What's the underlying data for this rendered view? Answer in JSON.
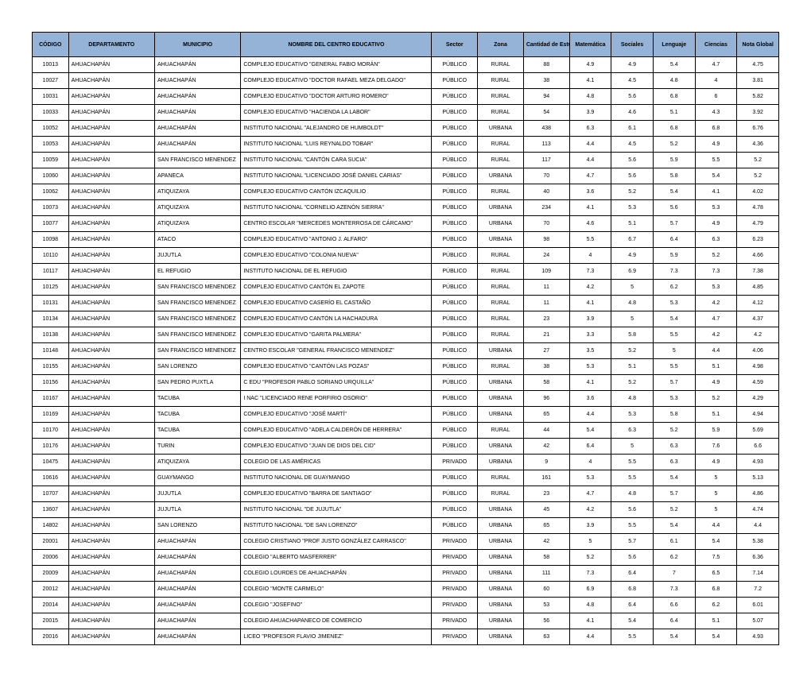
{
  "table": {
    "header_bg": "#95b3d7",
    "border_color": "#000000",
    "columns": [
      {
        "key": "codigo",
        "label": "CÓDIGO",
        "class": "c-codigo"
      },
      {
        "key": "depto",
        "label": "DEPARTAMENTO",
        "class": "c-depto"
      },
      {
        "key": "muni",
        "label": "MUNICIPIO",
        "class": "c-muni"
      },
      {
        "key": "nombre",
        "label": "NOMBRE DEL CENTRO EDUCATIVO",
        "class": "c-nombre"
      },
      {
        "key": "sector",
        "label": "Sector",
        "class": "c-sector"
      },
      {
        "key": "zona",
        "label": "Zona",
        "class": "c-zona"
      },
      {
        "key": "cant",
        "label": "Cantidad de Estudiantes",
        "class": "c-cant"
      },
      {
        "key": "mat",
        "label": "Matemática",
        "class": "c-mat"
      },
      {
        "key": "soc",
        "label": "Sociales",
        "class": "c-soc"
      },
      {
        "key": "len",
        "label": "Lenguaje",
        "class": "c-len"
      },
      {
        "key": "cie",
        "label": "Ciencias",
        "class": "c-cie"
      },
      {
        "key": "glo",
        "label": "Nota Global",
        "class": "c-glo"
      }
    ],
    "rows": [
      {
        "codigo": "10013",
        "depto": "AHUACHAPÁN",
        "muni": "AHUACHAPÁN",
        "nombre": "COMPLEJO EDUCATIVO \"GENERAL FABIO MORÁN\"",
        "sector": "PÚBLICO",
        "zona": "RURAL",
        "cant": "88",
        "mat": "4.9",
        "soc": "4.9",
        "len": "5.4",
        "cie": "4.7",
        "glo": "4.75"
      },
      {
        "codigo": "10027",
        "depto": "AHUACHAPÁN",
        "muni": "AHUACHAPÁN",
        "nombre": "COMPLEJO EDUCATIVO \"DOCTOR RAFAEL MEZA DELGADO\"",
        "sector": "PÚBLICO",
        "zona": "RURAL",
        "cant": "38",
        "mat": "4.1",
        "soc": "4.5",
        "len": "4.8",
        "cie": "4",
        "glo": "3.81"
      },
      {
        "codigo": "10031",
        "depto": "AHUACHAPÁN",
        "muni": "AHUACHAPÁN",
        "nombre": "COMPLEJO EDUCATIVO \"DOCTOR ARTURO ROMERO\"",
        "sector": "PÚBLICO",
        "zona": "RURAL",
        "cant": "94",
        "mat": "4.8",
        "soc": "5.6",
        "len": "6.8",
        "cie": "6",
        "glo": "5.82"
      },
      {
        "codigo": "10033",
        "depto": "AHUACHAPÁN",
        "muni": "AHUACHAPÁN",
        "nombre": "COMPLEJO EDUCATIVO \"HACIENDA LA LABOR\"",
        "sector": "PÚBLICO",
        "zona": "RURAL",
        "cant": "54",
        "mat": "3.9",
        "soc": "4.6",
        "len": "5.1",
        "cie": "4.3",
        "glo": "3.92"
      },
      {
        "codigo": "10052",
        "depto": "AHUACHAPÁN",
        "muni": "AHUACHAPÁN",
        "nombre": "INSTITUTO NACIONAL \"ALEJANDRO DE HUMBOLDT\"",
        "sector": "PÚBLICO",
        "zona": "URBANA",
        "cant": "438",
        "mat": "6.3",
        "soc": "6.1",
        "len": "6.8",
        "cie": "6.8",
        "glo": "6.76"
      },
      {
        "codigo": "10053",
        "depto": "AHUACHAPÁN",
        "muni": "AHUACHAPÁN",
        "nombre": "INSTITUTO NACIONAL \"LUIS REYNALDO TOBAR\"",
        "sector": "PÚBLICO",
        "zona": "RURAL",
        "cant": "113",
        "mat": "4.4",
        "soc": "4.5",
        "len": "5.2",
        "cie": "4.9",
        "glo": "4.36"
      },
      {
        "codigo": "10059",
        "depto": "AHUACHAPÁN",
        "muni": "SAN FRANCISCO MENENDEZ",
        "nombre": "INSTITUTO NACIONAL \"CANTÓN CARA SUCIA\"",
        "sector": "PÚBLICO",
        "zona": "RURAL",
        "cant": "117",
        "mat": "4.4",
        "soc": "5.6",
        "len": "5.9",
        "cie": "5.5",
        "glo": "5.2"
      },
      {
        "codigo": "10060",
        "depto": "AHUACHAPÁN",
        "muni": "APANECA",
        "nombre": "INSTITUTO NACIONAL \"LICENCIADO JOSÉ DANIEL CARIAS\"",
        "sector": "PÚBLICO",
        "zona": "URBANA",
        "cant": "70",
        "mat": "4.7",
        "soc": "5.6",
        "len": "5.8",
        "cie": "5.4",
        "glo": "5.2"
      },
      {
        "codigo": "10062",
        "depto": "AHUACHAPÁN",
        "muni": "ATIQUIZAYA",
        "nombre": "COMPLEJO EDUCATIVO CANTÓN  IZCAQUILIO",
        "sector": "PÚBLICO",
        "zona": "RURAL",
        "cant": "40",
        "mat": "3.6",
        "soc": "5.2",
        "len": "5.4",
        "cie": "4.1",
        "glo": "4.02"
      },
      {
        "codigo": "10073",
        "depto": "AHUACHAPÁN",
        "muni": "ATIQUIZAYA",
        "nombre": "INSTITUTO NACIONAL \"CORNELIO AZENÓN SIERRA\"",
        "sector": "PÚBLICO",
        "zona": "URBANA",
        "cant": "234",
        "mat": "4.1",
        "soc": "5.3",
        "len": "5.6",
        "cie": "5.3",
        "glo": "4.78"
      },
      {
        "codigo": "10077",
        "depto": "AHUACHAPÁN",
        "muni": "ATIQUIZAYA",
        "nombre": "CENTRO ESCOLAR \"MERCEDES MONTERROSA DE CÁRCAMO\"",
        "sector": "PÚBLICO",
        "zona": "URBANA",
        "cant": "70",
        "mat": "4.6",
        "soc": "5.1",
        "len": "5.7",
        "cie": "4.9",
        "glo": "4.79"
      },
      {
        "codigo": "10098",
        "depto": "AHUACHAPÁN",
        "muni": "ATACO",
        "nombre": "COMPLEJO EDUCATIVO \"ANTONIO J. ALFARO\"",
        "sector": "PÚBLICO",
        "zona": "URBANA",
        "cant": "98",
        "mat": "5.5",
        "soc": "6.7",
        "len": "6.4",
        "cie": "6.3",
        "glo": "6.23"
      },
      {
        "codigo": "10110",
        "depto": "AHUACHAPÁN",
        "muni": "JUJUTLA",
        "nombre": "COMPLEJO EDUCATIVO \"COLONIA NUEVA\"",
        "sector": "PÚBLICO",
        "zona": "RURAL",
        "cant": "24",
        "mat": "4",
        "soc": "4.9",
        "len": "5.9",
        "cie": "5.2",
        "glo": "4.66"
      },
      {
        "codigo": "10117",
        "depto": "AHUACHAPÁN",
        "muni": "EL REFUGIO",
        "nombre": "INSTITUTO NACIONAL DE EL REFUGIO",
        "sector": "PÚBLICO",
        "zona": "RURAL",
        "cant": "109",
        "mat": "7.3",
        "soc": "6.9",
        "len": "7.3",
        "cie": "7.3",
        "glo": "7.38"
      },
      {
        "codigo": "10125",
        "depto": "AHUACHAPÁN",
        "muni": "SAN FRANCISCO MENENDEZ",
        "nombre": "COMPLEJO EDUCATIVO CANTÓN EL ZAPOTE",
        "sector": "PÚBLICO",
        "zona": "RURAL",
        "cant": "11",
        "mat": "4.2",
        "soc": "5",
        "len": "6.2",
        "cie": "5.3",
        "glo": "4.85"
      },
      {
        "codigo": "10131",
        "depto": "AHUACHAPÁN",
        "muni": "SAN FRANCISCO MENENDEZ",
        "nombre": "COMPLEJO EDUCATIVO CASERÍO EL CASTAÑO",
        "sector": "PÚBLICO",
        "zona": "RURAL",
        "cant": "11",
        "mat": "4.1",
        "soc": "4.8",
        "len": "5.3",
        "cie": "4.2",
        "glo": "4.12"
      },
      {
        "codigo": "10134",
        "depto": "AHUACHAPÁN",
        "muni": "SAN FRANCISCO MENENDEZ",
        "nombre": "COMPLEJO EDUCATIVO CANTÓN LA HACHADURA",
        "sector": "PÚBLICO",
        "zona": "RURAL",
        "cant": "23",
        "mat": "3.9",
        "soc": "5",
        "len": "5.4",
        "cie": "4.7",
        "glo": "4.37"
      },
      {
        "codigo": "10138",
        "depto": "AHUACHAPÁN",
        "muni": "SAN FRANCISCO MENENDEZ",
        "nombre": "COMPLEJO EDUCATIVO \"GARITA PALMERA\"",
        "sector": "PÚBLICO",
        "zona": "RURAL",
        "cant": "21",
        "mat": "3.3",
        "soc": "5.8",
        "len": "5.5",
        "cie": "4.2",
        "glo": "4.2"
      },
      {
        "codigo": "10148",
        "depto": "AHUACHAPÁN",
        "muni": "SAN FRANCISCO MENENDEZ",
        "nombre": "CENTRO ESCOLAR \"GENERAL FRANCISCO MENENDEZ\"",
        "sector": "PÚBLICO",
        "zona": "URBANA",
        "cant": "27",
        "mat": "3.5",
        "soc": "5.2",
        "len": "5",
        "cie": "4.4",
        "glo": "4.06"
      },
      {
        "codigo": "10155",
        "depto": "AHUACHAPÁN",
        "muni": "SAN LORENZO",
        "nombre": "COMPLEJO EDUCATIVO \"CANTÓN LAS POZAS\"",
        "sector": "PÚBLICO",
        "zona": "RURAL",
        "cant": "38",
        "mat": "5.3",
        "soc": "5.1",
        "len": "5.5",
        "cie": "5.1",
        "glo": "4.98"
      },
      {
        "codigo": "10156",
        "depto": "AHUACHAPÁN",
        "muni": "SAN PEDRO PUXTLA",
        "nombre": "C EDU \"PROFESOR PABLO SORIANO URQUILLA\"",
        "sector": "PÚBLICO",
        "zona": "URBANA",
        "cant": "58",
        "mat": "4.1",
        "soc": "5.2",
        "len": "5.7",
        "cie": "4.9",
        "glo": "4.59"
      },
      {
        "codigo": "10167",
        "depto": "AHUACHAPÁN",
        "muni": "TACUBA",
        "nombre": "I NAC \"LICENCIADO RENE PORFIRIO OSORIO\"",
        "sector": "PÚBLICO",
        "zona": "URBANA",
        "cant": "96",
        "mat": "3.6",
        "soc": "4.8",
        "len": "5.3",
        "cie": "5.2",
        "glo": "4.29"
      },
      {
        "codigo": "10169",
        "depto": "AHUACHAPÁN",
        "muni": "TACUBA",
        "nombre": "COMPLEJO EDUCATIVO \"JOSÉ MARTÍ\"",
        "sector": "PÚBLICO",
        "zona": "URBANA",
        "cant": "65",
        "mat": "4.4",
        "soc": "5.3",
        "len": "5.8",
        "cie": "5.1",
        "glo": "4.94"
      },
      {
        "codigo": "10170",
        "depto": "AHUACHAPÁN",
        "muni": "TACUBA",
        "nombre": "COMPLEJO EDUCATIVO \"ADELA CALDERÓN DE HERRERA\"",
        "sector": "PÚBLICO",
        "zona": "RURAL",
        "cant": "44",
        "mat": "5.4",
        "soc": "6.3",
        "len": "5.2",
        "cie": "5.9",
        "glo": "5.69"
      },
      {
        "codigo": "10176",
        "depto": "AHUACHAPÁN",
        "muni": "TURIN",
        "nombre": "COMPLEJO EDUCATIVO \"JUAN DE DIOS DEL CID\"",
        "sector": "PÚBLICO",
        "zona": "URBANA",
        "cant": "42",
        "mat": "6.4",
        "soc": "5",
        "len": "6.3",
        "cie": "7.6",
        "glo": "6.6"
      },
      {
        "codigo": "10475",
        "depto": "AHUACHAPÁN",
        "muni": "ATIQUIZAYA",
        "nombre": "COLEGIO DE LAS AMÉRICAS",
        "sector": "PRIVADO",
        "zona": "URBANA",
        "cant": "9",
        "mat": "4",
        "soc": "5.5",
        "len": "6.3",
        "cie": "4.9",
        "glo": "4.93"
      },
      {
        "codigo": "10616",
        "depto": "AHUACHAPÁN",
        "muni": "GUAYMANGO",
        "nombre": "INSTITUTO NACIONAL DE GUAYMANGO",
        "sector": "PÚBLICO",
        "zona": "RURAL",
        "cant": "161",
        "mat": "5.3",
        "soc": "5.5",
        "len": "5.4",
        "cie": "5",
        "glo": "5.13"
      },
      {
        "codigo": "10707",
        "depto": "AHUACHAPÁN",
        "muni": "JUJUTLA",
        "nombre": "COMPLEJO EDUCATIVO \"BARRA DE SANTIAGO\"",
        "sector": "PÚBLICO",
        "zona": "RURAL",
        "cant": "23",
        "mat": "4.7",
        "soc": "4.8",
        "len": "5.7",
        "cie": "5",
        "glo": "4.86"
      },
      {
        "codigo": "13607",
        "depto": "AHUACHAPÁN",
        "muni": "JUJUTLA",
        "nombre": "INSTITUTO NACIONAL \"DE JUJUTLA\"",
        "sector": "PÚBLICO",
        "zona": "URBANA",
        "cant": "45",
        "mat": "4.2",
        "soc": "5.6",
        "len": "5.2",
        "cie": "5",
        "glo": "4.74"
      },
      {
        "codigo": "14802",
        "depto": "AHUACHAPÁN",
        "muni": "SAN LORENZO",
        "nombre": "INSTITUTO NACIONAL \"DE SAN LORENZO\"",
        "sector": "PÚBLICO",
        "zona": "URBANA",
        "cant": "65",
        "mat": "3.9",
        "soc": "5.5",
        "len": "5.4",
        "cie": "4.4",
        "glo": "4.4"
      },
      {
        "codigo": "20001",
        "depto": "AHUACHAPÁN",
        "muni": "AHUACHAPÁN",
        "nombre": "COLEGIO CRISTIANO \"PROF JUSTO GONZÁLEZ CARRASCO\"",
        "sector": "PRIVADO",
        "zona": "URBANA",
        "cant": "42",
        "mat": "5",
        "soc": "5.7",
        "len": "6.1",
        "cie": "5.4",
        "glo": "5.38"
      },
      {
        "codigo": "20006",
        "depto": "AHUACHAPÁN",
        "muni": "AHUACHAPÁN",
        "nombre": "COLEGIO \"ALBERTO MASFERRER\"",
        "sector": "PRIVADO",
        "zona": "URBANA",
        "cant": "58",
        "mat": "5.2",
        "soc": "5.6",
        "len": "6.2",
        "cie": "7.5",
        "glo": "6.36"
      },
      {
        "codigo": "20009",
        "depto": "AHUACHAPÁN",
        "muni": "AHUACHAPÁN",
        "nombre": "COLEGIO LOURDES DE AHUACHAPÁN",
        "sector": "PRIVADO",
        "zona": "URBANA",
        "cant": "111",
        "mat": "7.3",
        "soc": "6.4",
        "len": "7",
        "cie": "6.5",
        "glo": "7.14"
      },
      {
        "codigo": "20012",
        "depto": "AHUACHAPÁN",
        "muni": "AHUACHAPÁN",
        "nombre": "COLEGIO \"MONTE CARMELO\"",
        "sector": "PRIVADO",
        "zona": "URBANA",
        "cant": "60",
        "mat": "6.9",
        "soc": "6.8",
        "len": "7.3",
        "cie": "6.8",
        "glo": "7.2"
      },
      {
        "codigo": "20014",
        "depto": "AHUACHAPÁN",
        "muni": "AHUACHAPÁN",
        "nombre": "COLEGIO \"JOSEFINO\"",
        "sector": "PRIVADO",
        "zona": "URBANA",
        "cant": "53",
        "mat": "4.8",
        "soc": "6.4",
        "len": "6.6",
        "cie": "6.2",
        "glo": "6.01"
      },
      {
        "codigo": "20015",
        "depto": "AHUACHAPÁN",
        "muni": "AHUACHAPÁN",
        "nombre": "COLEGIO AHUACHAPANECO DE COMERCIO",
        "sector": "PRIVADO",
        "zona": "URBANA",
        "cant": "56",
        "mat": "4.1",
        "soc": "5.4",
        "len": "6.4",
        "cie": "5.1",
        "glo": "5.07"
      },
      {
        "codigo": "20016",
        "depto": "AHUACHAPÁN",
        "muni": "AHUACHAPÁN",
        "nombre": "LICEO \"PROFESOR FLAVIO JIMENEZ\"",
        "sector": "PRIVADO",
        "zona": "URBANA",
        "cant": "63",
        "mat": "4.4",
        "soc": "5.5",
        "len": "5.4",
        "cie": "5.4",
        "glo": "4.93"
      }
    ]
  }
}
